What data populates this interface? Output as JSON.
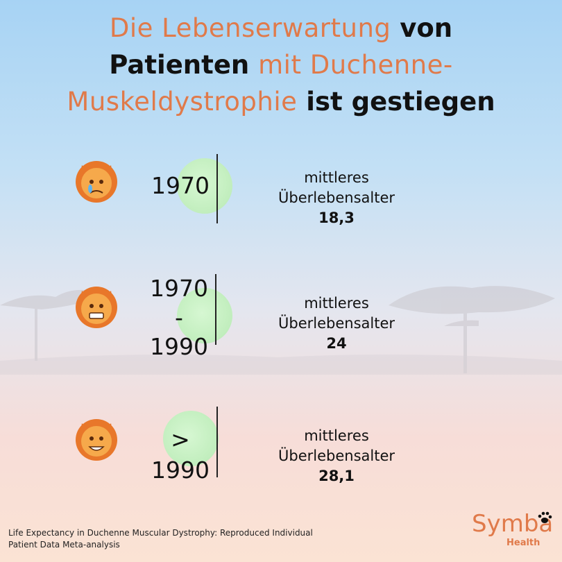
{
  "headline": {
    "part1": "Die Lebenserwartung",
    "part2": " von",
    "part3": "Patienten ",
    "part4": "mit Duchenne-",
    "part5": "Muskeldystrophie",
    "part6": " ist gestiegen"
  },
  "rows": [
    {
      "period_line1": "1970",
      "period_line2": "",
      "period_line3": "",
      "label_line1": "mittleres",
      "label_line2": "Überlebensalter",
      "value": "18,3",
      "lion": "crying-lion-icon"
    },
    {
      "period_line1": "1970",
      "period_line2": "-",
      "period_line3": "1990",
      "label_line1": "mittleres",
      "label_line2": "Überlebensalter",
      "value": "24",
      "lion": "grimacing-lion-icon"
    },
    {
      "period_line1": ">",
      "period_line2": "1990",
      "period_line3": "",
      "label_line1": "mittleres",
      "label_line2": "Überlebensalter",
      "value": "28,1",
      "lion": "smiling-lion-icon"
    }
  ],
  "source": {
    "line1": "Life Expectancy in Duchenne Muscular Dystrophy: Reproduced Individual",
    "line2": "Patient Data Meta-analysis"
  },
  "logo": {
    "name": "Symba",
    "sub": "Health"
  },
  "colors": {
    "accent": "#e07a4a",
    "circle": "#c4efc0",
    "lion": "#f2882f"
  }
}
